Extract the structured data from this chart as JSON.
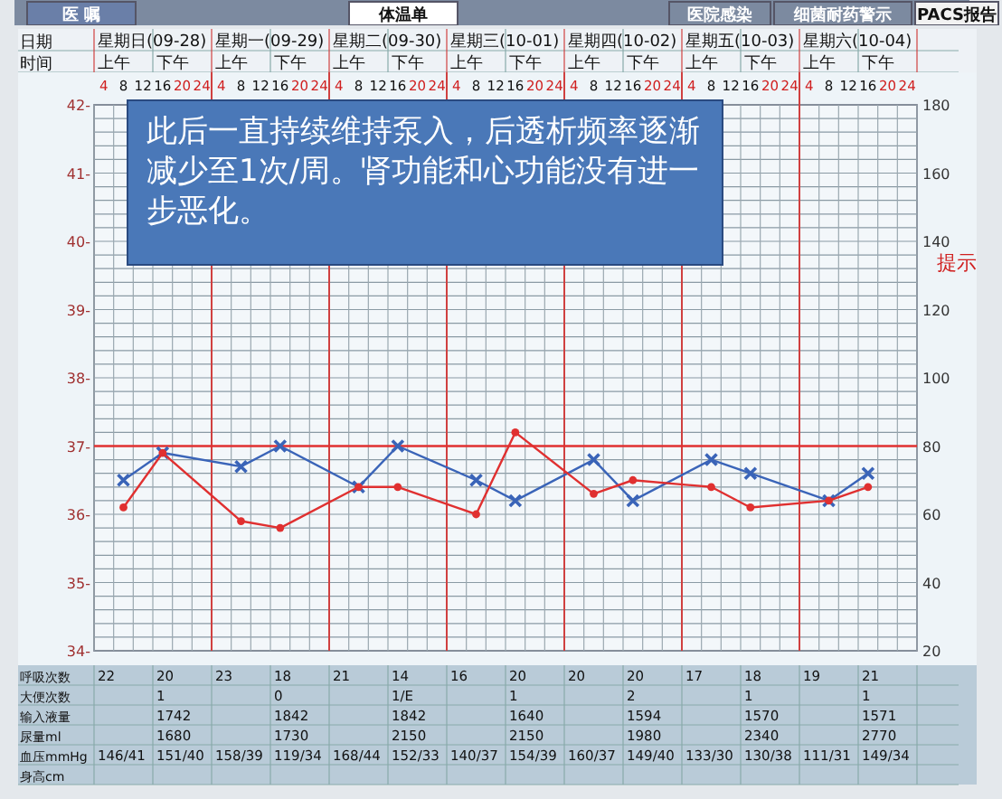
{
  "chart_data": [
    {
      "type": "other",
      "annotations": [
        "医 嘱",
        "体温单",
        "医院感染",
        "细菌耐药警示",
        "PACS报告"
      ]
    },
    {
      "type": "heatmap",
      "categories": [
        null,
        null,
        null,
        null,
        null,
        null,
        null,
        null,
        null,
        null,
        null,
        null,
        null,
        null
      ],
      "y_categories": [
        "日期",
        "时间"
      ],
      "cells": [
        [
          null,
          null,
          null,
          null,
          null,
          null,
          null,
          null,
          null,
          null,
          null,
          null,
          null,
          null
        ],
        [
          null,
          null,
          null,
          null,
          null,
          null,
          null,
          null,
          null,
          null,
          null,
          null,
          null,
          null
        ]
      ],
      "cell_labels": [
        [
          "星期日(09-28)",
          null,
          "星期一(09-29)",
          null,
          "星期二(09-30)",
          null,
          "星期三(10-01)",
          null,
          "星期四(10-02)",
          null,
          "星期五(10-03)",
          null,
          "星期六(10-04)",
          null
        ],
        [
          "上午",
          "下午",
          "上午",
          "下午",
          "上午",
          "下午",
          "上午",
          "下午",
          "上午",
          "下午",
          "上午",
          "下午",
          "上午",
          "下午"
        ]
      ]
    },
    {
      "type": "line",
      "categories": [
        "4",
        "8",
        "12",
        "16",
        "20",
        "24",
        "4",
        "8",
        "12",
        "16",
        "20",
        "24",
        "4",
        "8",
        "12",
        "16",
        "20",
        "24",
        "4",
        "8",
        "12",
        "16",
        "20",
        "24",
        "4",
        "8",
        "12",
        "16",
        "20",
        "24",
        "4",
        "8",
        "12",
        "16",
        "20",
        "24",
        "4",
        "8",
        "12",
        "16",
        "20",
        "24"
      ],
      "series": [
        {
          "color": "#e03030",
          "marker": "circle",
          "values": [
            null,
            36.1,
            null,
            36.9,
            null,
            null,
            null,
            35.9,
            null,
            35.8,
            null,
            null,
            null,
            36.4,
            null,
            36.4,
            null,
            null,
            null,
            36.0,
            null,
            37.2,
            null,
            null,
            null,
            36.3,
            null,
            36.5,
            null,
            null,
            null,
            36.4,
            null,
            36.1,
            null,
            null,
            null,
            36.2,
            null,
            36.4,
            null,
            null
          ]
        },
        {
          "color": "#3a64b8",
          "marker": "cross",
          "axis": "y2",
          "values": [
            null,
            70,
            null,
            78,
            null,
            null,
            null,
            74,
            null,
            80,
            null,
            null,
            null,
            68,
            null,
            80,
            null,
            null,
            null,
            70,
            null,
            64,
            null,
            null,
            null,
            76,
            null,
            64,
            null,
            null,
            null,
            76,
            null,
            72,
            null,
            null,
            null,
            64,
            null,
            72,
            null,
            null
          ]
        }
      ],
      "ylim": [
        34,
        42
      ],
      "yticks": [
        {
          "value": 34,
          "label": "34-"
        },
        {
          "value": 35,
          "label": "35-"
        },
        {
          "value": 36,
          "label": "36-"
        },
        {
          "value": 37,
          "label": "37-"
        },
        {
          "value": 38,
          "label": "38-"
        },
        {
          "value": 39,
          "label": "39-"
        },
        {
          "value": 40,
          "label": "40-"
        },
        {
          "value": 41,
          "label": "41-"
        },
        {
          "value": 42,
          "label": "42-"
        }
      ],
      "y2lim": [
        20,
        180
      ],
      "y2ticks": [
        20,
        40,
        60,
        80,
        100,
        120,
        140,
        160,
        180
      ],
      "ref_lines": [
        {
          "axis": "y",
          "value": 37,
          "color": "#e03030"
        }
      ],
      "grid": true,
      "annotations": [
        "此后一直持续维持泵入，后透析频率逐渐减少至1次/周。肾功能和心功能没有进一步恶化。",
        "提示"
      ]
    },
    {
      "type": "heatmap",
      "categories": [
        null,
        null,
        null,
        null,
        null,
        null,
        null,
        null,
        null,
        null,
        null,
        null,
        null,
        null
      ],
      "y_categories": [
        "呼吸次数",
        "大便次数",
        "输入液量",
        "尿量ml",
        "血压mmHg",
        "身高cm"
      ],
      "cells": [
        [
          null,
          null,
          null,
          null,
          null,
          null,
          null,
          null,
          null,
          null,
          null,
          null,
          null,
          null
        ],
        [
          null,
          null,
          null,
          null,
          null,
          null,
          null,
          null,
          null,
          null,
          null,
          null,
          null,
          null
        ],
        [
          null,
          null,
          null,
          null,
          null,
          null,
          null,
          null,
          null,
          null,
          null,
          null,
          null,
          null
        ],
        [
          null,
          null,
          null,
          null,
          null,
          null,
          null,
          null,
          null,
          null,
          null,
          null,
          null,
          null
        ],
        [
          null,
          null,
          null,
          null,
          null,
          null,
          null,
          null,
          null,
          null,
          null,
          null,
          null,
          null
        ],
        [
          null,
          null,
          null,
          null,
          null,
          null,
          null,
          null,
          null,
          null,
          null,
          null,
          null,
          null
        ]
      ],
      "cell_labels": [
        [
          "22",
          "20",
          "23",
          "18",
          "21",
          "14",
          "16",
          "20",
          "20",
          "20",
          "17",
          "18",
          "19",
          "21"
        ],
        [
          null,
          "1",
          null,
          "0",
          null,
          "1/E",
          null,
          "1",
          null,
          "2",
          null,
          "1",
          null,
          "1"
        ],
        [
          null,
          "1742",
          null,
          "1842",
          null,
          "1842",
          null,
          "1640",
          null,
          "1594",
          null,
          "1570",
          null,
          "1571"
        ],
        [
          null,
          "1680",
          null,
          "1730",
          null,
          "2150",
          null,
          "2150",
          null,
          "1980",
          null,
          "2340",
          null,
          "2770"
        ],
        [
          "146/41",
          "151/40",
          "158/39",
          "119/34",
          "168/44",
          "152/33",
          "140/37",
          "154/39",
          "160/37",
          "149/40",
          "133/30",
          "130/38",
          "111/31",
          "149/34"
        ],
        [
          null,
          null,
          null,
          null,
          null,
          null,
          null,
          null,
          null,
          null,
          null,
          null,
          null,
          null
        ]
      ]
    }
  ]
}
